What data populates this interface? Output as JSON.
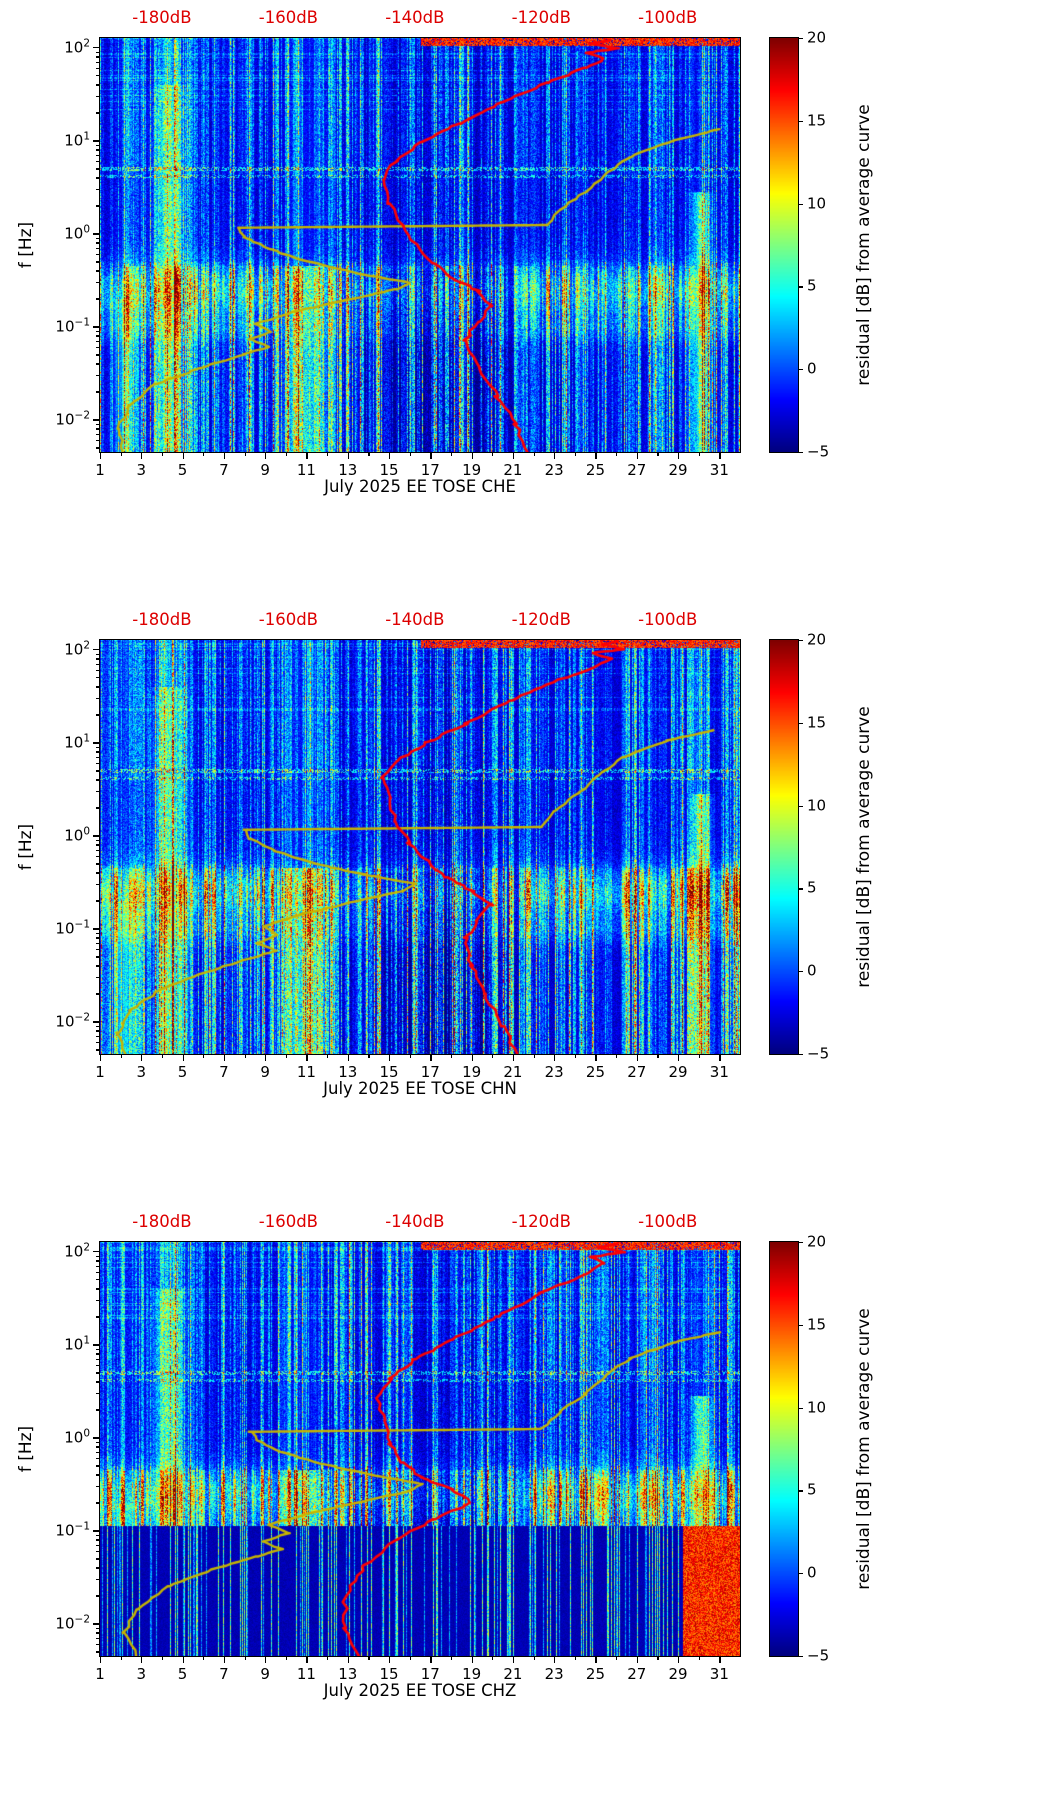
{
  "figure": {
    "background": "#ffffff"
  },
  "chart_data": [
    {
      "type": "heatmap",
      "title": "July 2025 EE TOSE  CHE",
      "ylabel": "f [Hz]",
      "x_ticks": [
        1,
        3,
        5,
        7,
        9,
        11,
        13,
        15,
        17,
        19,
        21,
        23,
        25,
        27,
        29,
        31
      ],
      "x_range_days": [
        1,
        32
      ],
      "y_tick_exponents": [
        2,
        1,
        0,
        -1,
        -2
      ],
      "y_range_log10hz": [
        -2.35,
        2.1
      ],
      "colorbar": {
        "label": "residual [dB] from average curve",
        "ticks": [
          20,
          15,
          10,
          5,
          0,
          -5
        ],
        "min": -5,
        "max": 20,
        "colormap": "jet"
      },
      "top_axis": {
        "labels": [
          "-180dB",
          "-160dB",
          "-140dB",
          "-120dB",
          "-100dB"
        ],
        "day_positions": [
          4,
          10.125,
          16.25,
          22.375,
          28.5
        ],
        "color": "#dd0000"
      },
      "curves": {
        "average_spectrum_red": {
          "color": "#ff0000",
          "points_db_logf": [
            [
              -122,
              -2.35
            ],
            [
              -124,
              -2.05
            ],
            [
              -127,
              -1.75
            ],
            [
              -130,
              -1.45
            ],
            [
              -132,
              -1.15
            ],
            [
              -130,
              -0.95
            ],
            [
              -128,
              -0.78
            ],
            [
              -130,
              -0.62
            ],
            [
              -134,
              -0.48
            ],
            [
              -137,
              -0.32
            ],
            [
              -140,
              -0.12
            ],
            [
              -142,
              0.08
            ],
            [
              -144,
              0.32
            ],
            [
              -145,
              0.58
            ],
            [
              -143,
              0.78
            ],
            [
              -139,
              0.98
            ],
            [
              -133,
              1.18
            ],
            [
              -126,
              1.42
            ],
            [
              -119,
              1.62
            ],
            [
              -113,
              1.78
            ],
            [
              -110,
              1.88
            ],
            [
              -113,
              1.94
            ],
            [
              -108,
              1.99
            ],
            [
              -112,
              2.04
            ],
            [
              -109,
              2.08
            ]
          ]
        },
        "reference_yellow": {
          "color": "#c6b400",
          "points_db_logf": [
            [
              -186,
              -2.35
            ],
            [
              -187,
              -2.1
            ],
            [
              -185,
              -1.85
            ],
            [
              -181,
              -1.62
            ],
            [
              -174,
              -1.45
            ],
            [
              -167,
              -1.3
            ],
            [
              -163,
              -1.22
            ],
            [
              -166,
              -1.14
            ],
            [
              -163,
              -1.06
            ],
            [
              -165,
              -0.97
            ],
            [
              -159,
              -0.84
            ],
            [
              -151,
              -0.72
            ],
            [
              -143,
              -0.6
            ],
            [
              -141,
              -0.53
            ],
            [
              -149,
              -0.43
            ],
            [
              -157,
              -0.3
            ],
            [
              -163,
              -0.17
            ],
            [
              -167,
              -0.04
            ],
            [
              -168,
              0.06
            ],
            [
              -119,
              0.09
            ],
            [
              -117,
              0.25
            ],
            [
              -113,
              0.45
            ],
            [
              -110,
              0.62
            ],
            [
              -106,
              0.82
            ],
            [
              -99,
              1.0
            ],
            [
              -92,
              1.12
            ]
          ]
        }
      },
      "notable_features": [
        "strong broadband noise stripe days 4-5",
        "low-frequency noise patch days 10-12",
        "microseism band near 0.2-0.3 Hz",
        "hot column near day 30"
      ],
      "render": {
        "seed": 7,
        "dark_low": false
      }
    },
    {
      "type": "heatmap",
      "title": "July 2025 EE TOSE  CHN",
      "ylabel": "f [Hz]",
      "x_ticks": [
        1,
        3,
        5,
        7,
        9,
        11,
        13,
        15,
        17,
        19,
        21,
        23,
        25,
        27,
        29,
        31
      ],
      "x_range_days": [
        1,
        32
      ],
      "y_tick_exponents": [
        2,
        1,
        0,
        -1,
        -2
      ],
      "y_range_log10hz": [
        -2.35,
        2.1
      ],
      "colorbar": {
        "label": "residual [dB] from average curve",
        "ticks": [
          20,
          15,
          10,
          5,
          0,
          -5
        ],
        "min": -5,
        "max": 20,
        "colormap": "jet"
      },
      "top_axis": {
        "labels": [
          "-180dB",
          "-160dB",
          "-140dB",
          "-120dB",
          "-100dB"
        ],
        "day_positions": [
          4,
          10.125,
          16.25,
          22.375,
          28.5
        ],
        "color": "#dd0000"
      },
      "curves": {
        "average_spectrum_red": {
          "color": "#ff0000",
          "points_db_logf": [
            [
              -124,
              -2.35
            ],
            [
              -126,
              -2.05
            ],
            [
              -129,
              -1.7
            ],
            [
              -131,
              -1.4
            ],
            [
              -132,
              -1.1
            ],
            [
              -130,
              -0.92
            ],
            [
              -128,
              -0.75
            ],
            [
              -131,
              -0.6
            ],
            [
              -135,
              -0.45
            ],
            [
              -138,
              -0.28
            ],
            [
              -141,
              -0.08
            ],
            [
              -143,
              0.15
            ],
            [
              -144,
              0.4
            ],
            [
              -145,
              0.62
            ],
            [
              -143,
              0.8
            ],
            [
              -138,
              1.0
            ],
            [
              -132,
              1.2
            ],
            [
              -125,
              1.45
            ],
            [
              -118,
              1.65
            ],
            [
              -112,
              1.8
            ],
            [
              -109,
              1.9
            ],
            [
              -112,
              1.96
            ],
            [
              -107,
              2.0
            ],
            [
              -110,
              2.05
            ],
            [
              -108,
              2.09
            ]
          ]
        },
        "reference_yellow": {
          "color": "#c6b400",
          "points_db_logf": [
            [
              -186,
              -2.35
            ],
            [
              -187,
              -2.12
            ],
            [
              -185,
              -1.88
            ],
            [
              -180,
              -1.65
            ],
            [
              -173,
              -1.47
            ],
            [
              -166,
              -1.32
            ],
            [
              -162,
              -1.24
            ],
            [
              -165,
              -1.16
            ],
            [
              -162,
              -1.07
            ],
            [
              -164,
              -0.98
            ],
            [
              -158,
              -0.85
            ],
            [
              -150,
              -0.72
            ],
            [
              -142,
              -0.6
            ],
            [
              -140,
              -0.52
            ],
            [
              -148,
              -0.42
            ],
            [
              -156,
              -0.3
            ],
            [
              -162,
              -0.17
            ],
            [
              -166,
              -0.04
            ],
            [
              -167,
              0.06
            ],
            [
              -120,
              0.09
            ],
            [
              -118,
              0.26
            ],
            [
              -114,
              0.46
            ],
            [
              -111,
              0.64
            ],
            [
              -107,
              0.84
            ],
            [
              -100,
              1.02
            ],
            [
              -93,
              1.13
            ]
          ]
        }
      },
      "notable_features": [
        "strong broadband noise stripe days 4-5",
        "low-frequency noise patch days 10-12",
        "microseism band near 0.2-0.3 Hz",
        "hot column near day 30"
      ],
      "render": {
        "seed": 19,
        "dark_low": false
      }
    },
    {
      "type": "heatmap",
      "title": "July 2025 EE TOSE  CHZ",
      "ylabel": "f [Hz]",
      "x_ticks": [
        1,
        3,
        5,
        7,
        9,
        11,
        13,
        15,
        17,
        19,
        21,
        23,
        25,
        27,
        29,
        31
      ],
      "x_range_days": [
        1,
        32
      ],
      "y_tick_exponents": [
        2,
        1,
        0,
        -1,
        -2
      ],
      "y_range_log10hz": [
        -2.35,
        2.1
      ],
      "colorbar": {
        "label": "residual [dB] from average curve",
        "ticks": [
          20,
          15,
          10,
          5,
          0,
          -5
        ],
        "min": -5,
        "max": 20,
        "colormap": "jet"
      },
      "top_axis": {
        "labels": [
          "-180dB",
          "-160dB",
          "-140dB",
          "-120dB",
          "-100dB"
        ],
        "day_positions": [
          4,
          10.125,
          16.25,
          22.375,
          28.5
        ],
        "color": "#dd0000"
      },
      "curves": {
        "average_spectrum_red": {
          "color": "#ff0000",
          "points_db_logf": [
            [
              -149,
              -2.35
            ],
            [
              -151,
              -2.05
            ],
            [
              -151,
              -1.7
            ],
            [
              -148,
              -1.38
            ],
            [
              -143,
              -1.1
            ],
            [
              -137,
              -0.88
            ],
            [
              -131,
              -0.7
            ],
            [
              -134,
              -0.56
            ],
            [
              -139,
              -0.43
            ],
            [
              -142,
              -0.27
            ],
            [
              -144,
              -0.07
            ],
            [
              -145,
              0.18
            ],
            [
              -146,
              0.42
            ],
            [
              -144,
              0.63
            ],
            [
              -140,
              0.84
            ],
            [
              -134,
              1.05
            ],
            [
              -127,
              1.3
            ],
            [
              -120,
              1.55
            ],
            [
              -113,
              1.75
            ],
            [
              -110,
              1.87
            ],
            [
              -112,
              1.94
            ],
            [
              -107,
              1.99
            ],
            [
              -111,
              2.04
            ],
            [
              -108,
              2.08
            ]
          ]
        },
        "reference_yellow": {
          "color": "#c6b400",
          "points_db_logf": [
            [
              -184,
              -2.35
            ],
            [
              -186,
              -2.1
            ],
            [
              -184,
              -1.85
            ],
            [
              -179,
              -1.6
            ],
            [
              -172,
              -1.42
            ],
            [
              -165,
              -1.28
            ],
            [
              -161,
              -1.2
            ],
            [
              -164,
              -1.12
            ],
            [
              -160,
              -1.03
            ],
            [
              -163,
              -0.94
            ],
            [
              -157,
              -0.82
            ],
            [
              -149,
              -0.7
            ],
            [
              -141,
              -0.58
            ],
            [
              -139,
              -0.5
            ],
            [
              -147,
              -0.4
            ],
            [
              -155,
              -0.28
            ],
            [
              -161,
              -0.16
            ],
            [
              -165,
              -0.03
            ],
            [
              -166,
              0.06
            ],
            [
              -120,
              0.09
            ],
            [
              -117,
              0.27
            ],
            [
              -113,
              0.47
            ],
            [
              -110,
              0.65
            ],
            [
              -106,
              0.85
            ],
            [
              -99,
              1.02
            ],
            [
              -92,
              1.13
            ]
          ]
        }
      },
      "notable_features": [
        "dark quiet band below 0.1 Hz with sparse bright columns",
        "strong red anomaly days 29-31 at low frequency",
        "microseism band near 0.2 Hz",
        "broadband stripe days 4-5"
      ],
      "render": {
        "seed": 31,
        "dark_low": true,
        "dark_low_lf": -0.95
      }
    }
  ]
}
